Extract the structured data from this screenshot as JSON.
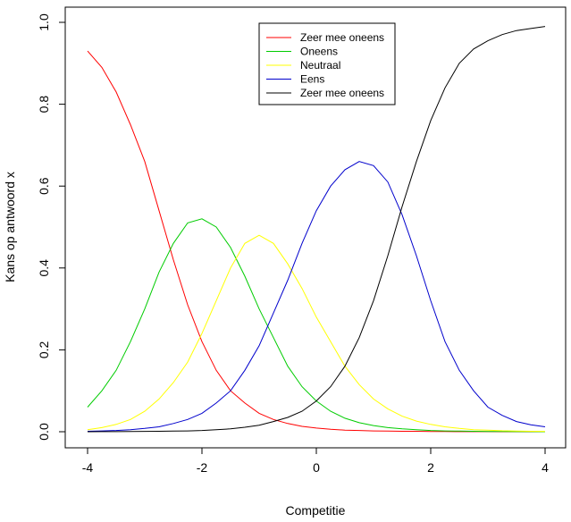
{
  "chart_data": {
    "type": "line",
    "title": "",
    "xlabel": "Competitie",
    "ylabel": "Kans op antwoord x",
    "xlim": [
      -4,
      4
    ],
    "ylim": [
      0,
      1
    ],
    "x_ticks": [
      "-4",
      "-2",
      "0",
      "2",
      "4"
    ],
    "y_ticks": [
      "0.0",
      "0.2",
      "0.4",
      "0.6",
      "0.8",
      "1.0"
    ],
    "legend_position": "top-right",
    "x": [
      -4,
      -3.75,
      -3.5,
      -3.25,
      -3,
      -2.75,
      -2.5,
      -2.25,
      -2,
      -1.75,
      -1.5,
      -1.25,
      -1,
      -0.75,
      -0.5,
      -0.25,
      0,
      0.25,
      0.5,
      0.75,
      1,
      1.25,
      1.5,
      1.75,
      2,
      2.25,
      2.5,
      2.75,
      3,
      3.25,
      3.5,
      3.75,
      4
    ],
    "series": [
      {
        "name": "Zeer mee oneens",
        "color": "#ff0000",
        "values": [
          0.93,
          0.89,
          0.83,
          0.75,
          0.66,
          0.54,
          0.42,
          0.31,
          0.22,
          0.15,
          0.1,
          0.07,
          0.045,
          0.03,
          0.02,
          0.013,
          0.009,
          0.006,
          0.004,
          0.003,
          0.002,
          0.0015,
          0.001,
          0.001,
          0.0005,
          0.0005,
          0.0003,
          0.0002,
          0.0002,
          0.0001,
          0.0001,
          0.0001,
          0.0001
        ]
      },
      {
        "name": "Oneens",
        "color": "#00cc00",
        "values": [
          0.06,
          0.1,
          0.15,
          0.22,
          0.3,
          0.39,
          0.46,
          0.51,
          0.52,
          0.5,
          0.45,
          0.38,
          0.3,
          0.23,
          0.16,
          0.11,
          0.075,
          0.05,
          0.033,
          0.022,
          0.015,
          0.01,
          0.007,
          0.005,
          0.003,
          0.002,
          0.0015,
          0.001,
          0.0007,
          0.0005,
          0.0003,
          0.0002,
          0.0001
        ]
      },
      {
        "name": "Neutraal",
        "color": "#ffff00",
        "values": [
          0.005,
          0.01,
          0.018,
          0.03,
          0.05,
          0.08,
          0.12,
          0.17,
          0.24,
          0.32,
          0.4,
          0.46,
          0.48,
          0.46,
          0.41,
          0.35,
          0.28,
          0.22,
          0.16,
          0.115,
          0.08,
          0.056,
          0.038,
          0.026,
          0.018,
          0.012,
          0.008,
          0.005,
          0.004,
          0.0025,
          0.0017,
          0.0012,
          0.0008
        ]
      },
      {
        "name": "Eens",
        "color": "#0000cc",
        "values": [
          0.001,
          0.002,
          0.003,
          0.005,
          0.008,
          0.012,
          0.02,
          0.03,
          0.045,
          0.07,
          0.1,
          0.15,
          0.21,
          0.29,
          0.37,
          0.46,
          0.54,
          0.6,
          0.64,
          0.66,
          0.65,
          0.61,
          0.53,
          0.43,
          0.32,
          0.22,
          0.15,
          0.1,
          0.06,
          0.04,
          0.025,
          0.017,
          0.012
        ]
      },
      {
        "name": "Zeer mee oneens",
        "color": "#000000",
        "values": [
          0.0001,
          0.0002,
          0.0003,
          0.0005,
          0.0008,
          0.001,
          0.0015,
          0.002,
          0.003,
          0.005,
          0.007,
          0.011,
          0.016,
          0.025,
          0.035,
          0.05,
          0.075,
          0.11,
          0.16,
          0.23,
          0.32,
          0.43,
          0.55,
          0.66,
          0.76,
          0.84,
          0.9,
          0.935,
          0.955,
          0.97,
          0.98,
          0.985,
          0.99
        ]
      }
    ]
  }
}
